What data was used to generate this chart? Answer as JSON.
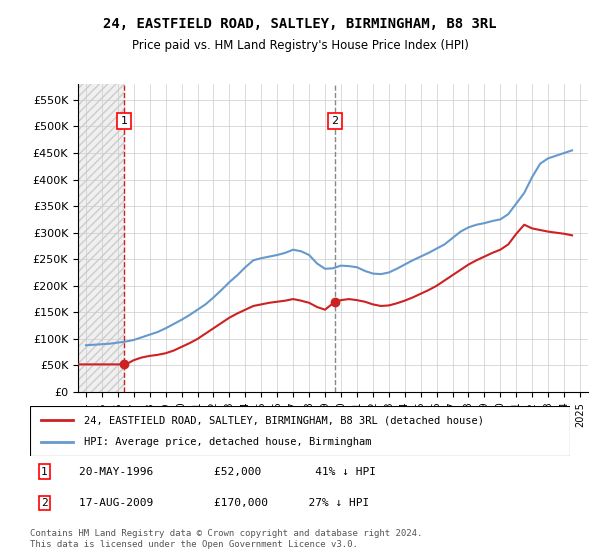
{
  "title": "24, EASTFIELD ROAD, SALTLEY, BIRMINGHAM, B8 3RL",
  "subtitle": "Price paid vs. HM Land Registry's House Price Index (HPI)",
  "hpi_color": "#6699cc",
  "price_color": "#cc2222",
  "vline_color": "#cc2222",
  "hatch_color": "#dddddd",
  "ylim": [
    0,
    580000
  ],
  "yticks": [
    0,
    50000,
    100000,
    150000,
    200000,
    250000,
    300000,
    350000,
    400000,
    450000,
    500000,
    550000
  ],
  "ytick_labels": [
    "£0",
    "£50K",
    "£100K",
    "£150K",
    "£200K",
    "£250K",
    "£300K",
    "£350K",
    "£400K",
    "£450K",
    "£500K",
    "£550K"
  ],
  "xlim_start": 1993.5,
  "xlim_end": 2025.5,
  "xticks": [
    1994,
    1995,
    1996,
    1997,
    1998,
    1999,
    2000,
    2001,
    2002,
    2003,
    2004,
    2005,
    2006,
    2007,
    2008,
    2009,
    2010,
    2011,
    2012,
    2013,
    2014,
    2015,
    2016,
    2017,
    2018,
    2019,
    2020,
    2021,
    2022,
    2023,
    2024,
    2025
  ],
  "sale1_x": 1996.38,
  "sale1_y": 52000,
  "sale1_label": "1",
  "sale2_x": 2009.62,
  "sale2_y": 170000,
  "sale2_label": "2",
  "legend_line1": "24, EASTFIELD ROAD, SALTLEY, BIRMINGHAM, B8 3RL (detached house)",
  "legend_line2": "HPI: Average price, detached house, Birmingham",
  "annotation1": "1    20-MAY-1996         £52,000        41% ↓ HPI",
  "annotation2": "2    17-AUG-2009         £170,000      27% ↓ HPI",
  "footnote": "Contains HM Land Registry data © Crown copyright and database right 2024.\nThis data is licensed under the Open Government Licence v3.0.",
  "hpi_data_x": [
    1994,
    1994.5,
    1995,
    1995.5,
    1996,
    1996.5,
    1997,
    1997.5,
    1998,
    1998.5,
    1999,
    1999.5,
    2000,
    2000.5,
    2001,
    2001.5,
    2002,
    2002.5,
    2003,
    2003.5,
    2004,
    2004.5,
    2005,
    2005.5,
    2006,
    2006.5,
    2007,
    2007.5,
    2008,
    2008.5,
    2009,
    2009.5,
    2010,
    2010.5,
    2011,
    2011.5,
    2012,
    2012.5,
    2013,
    2013.5,
    2014,
    2014.5,
    2015,
    2015.5,
    2016,
    2016.5,
    2017,
    2017.5,
    2018,
    2018.5,
    2019,
    2019.5,
    2020,
    2020.5,
    2021,
    2021.5,
    2022,
    2022.5,
    2023,
    2023.5,
    2024,
    2024.5
  ],
  "hpi_data_y": [
    88000,
    89000,
    90000,
    91000,
    93000,
    95000,
    98000,
    103000,
    108000,
    113000,
    120000,
    128000,
    136000,
    145000,
    155000,
    165000,
    178000,
    192000,
    207000,
    220000,
    235000,
    248000,
    252000,
    255000,
    258000,
    262000,
    268000,
    265000,
    258000,
    242000,
    232000,
    233000,
    238000,
    237000,
    235000,
    228000,
    223000,
    222000,
    225000,
    232000,
    240000,
    248000,
    255000,
    262000,
    270000,
    278000,
    290000,
    302000,
    310000,
    315000,
    318000,
    322000,
    325000,
    335000,
    355000,
    375000,
    405000,
    430000,
    440000,
    445000,
    450000,
    455000
  ],
  "price_data_x": [
    1996.38,
    2009.62
  ],
  "price_data_y": [
    52000,
    170000
  ],
  "price_line_x": [
    1993.5,
    1994,
    1994.5,
    1995,
    1995.5,
    1996,
    1996.38,
    1996.5,
    1997,
    1997.5,
    1998,
    1998.5,
    1999,
    1999.5,
    2000,
    2000.5,
    2001,
    2001.5,
    2002,
    2002.5,
    2003,
    2003.5,
    2004,
    2004.5,
    2005,
    2005.5,
    2006,
    2006.5,
    2007,
    2007.5,
    2008,
    2008.5,
    2009,
    2009.62,
    2010,
    2010.5,
    2011,
    2011.5,
    2012,
    2012.5,
    2013,
    2013.5,
    2014,
    2014.5,
    2015,
    2015.5,
    2016,
    2016.5,
    2017,
    2017.5,
    2018,
    2018.5,
    2019,
    2019.5,
    2020,
    2020.5,
    2021,
    2021.5,
    2022,
    2022.5,
    2023,
    2023.5,
    2024,
    2024.5
  ],
  "price_line_y": [
    52000,
    52000,
    52000,
    52000,
    52000,
    52000,
    52000,
    52000,
    60000,
    65000,
    68000,
    70000,
    73000,
    78000,
    85000,
    92000,
    100000,
    110000,
    120000,
    130000,
    140000,
    148000,
    155000,
    162000,
    165000,
    168000,
    170000,
    172000,
    175000,
    172000,
    168000,
    160000,
    155000,
    170000,
    173000,
    175000,
    173000,
    170000,
    165000,
    162000,
    163000,
    167000,
    172000,
    178000,
    185000,
    192000,
    200000,
    210000,
    220000,
    230000,
    240000,
    248000,
    255000,
    262000,
    268000,
    278000,
    298000,
    315000,
    308000,
    305000,
    302000,
    300000,
    298000,
    295000
  ]
}
